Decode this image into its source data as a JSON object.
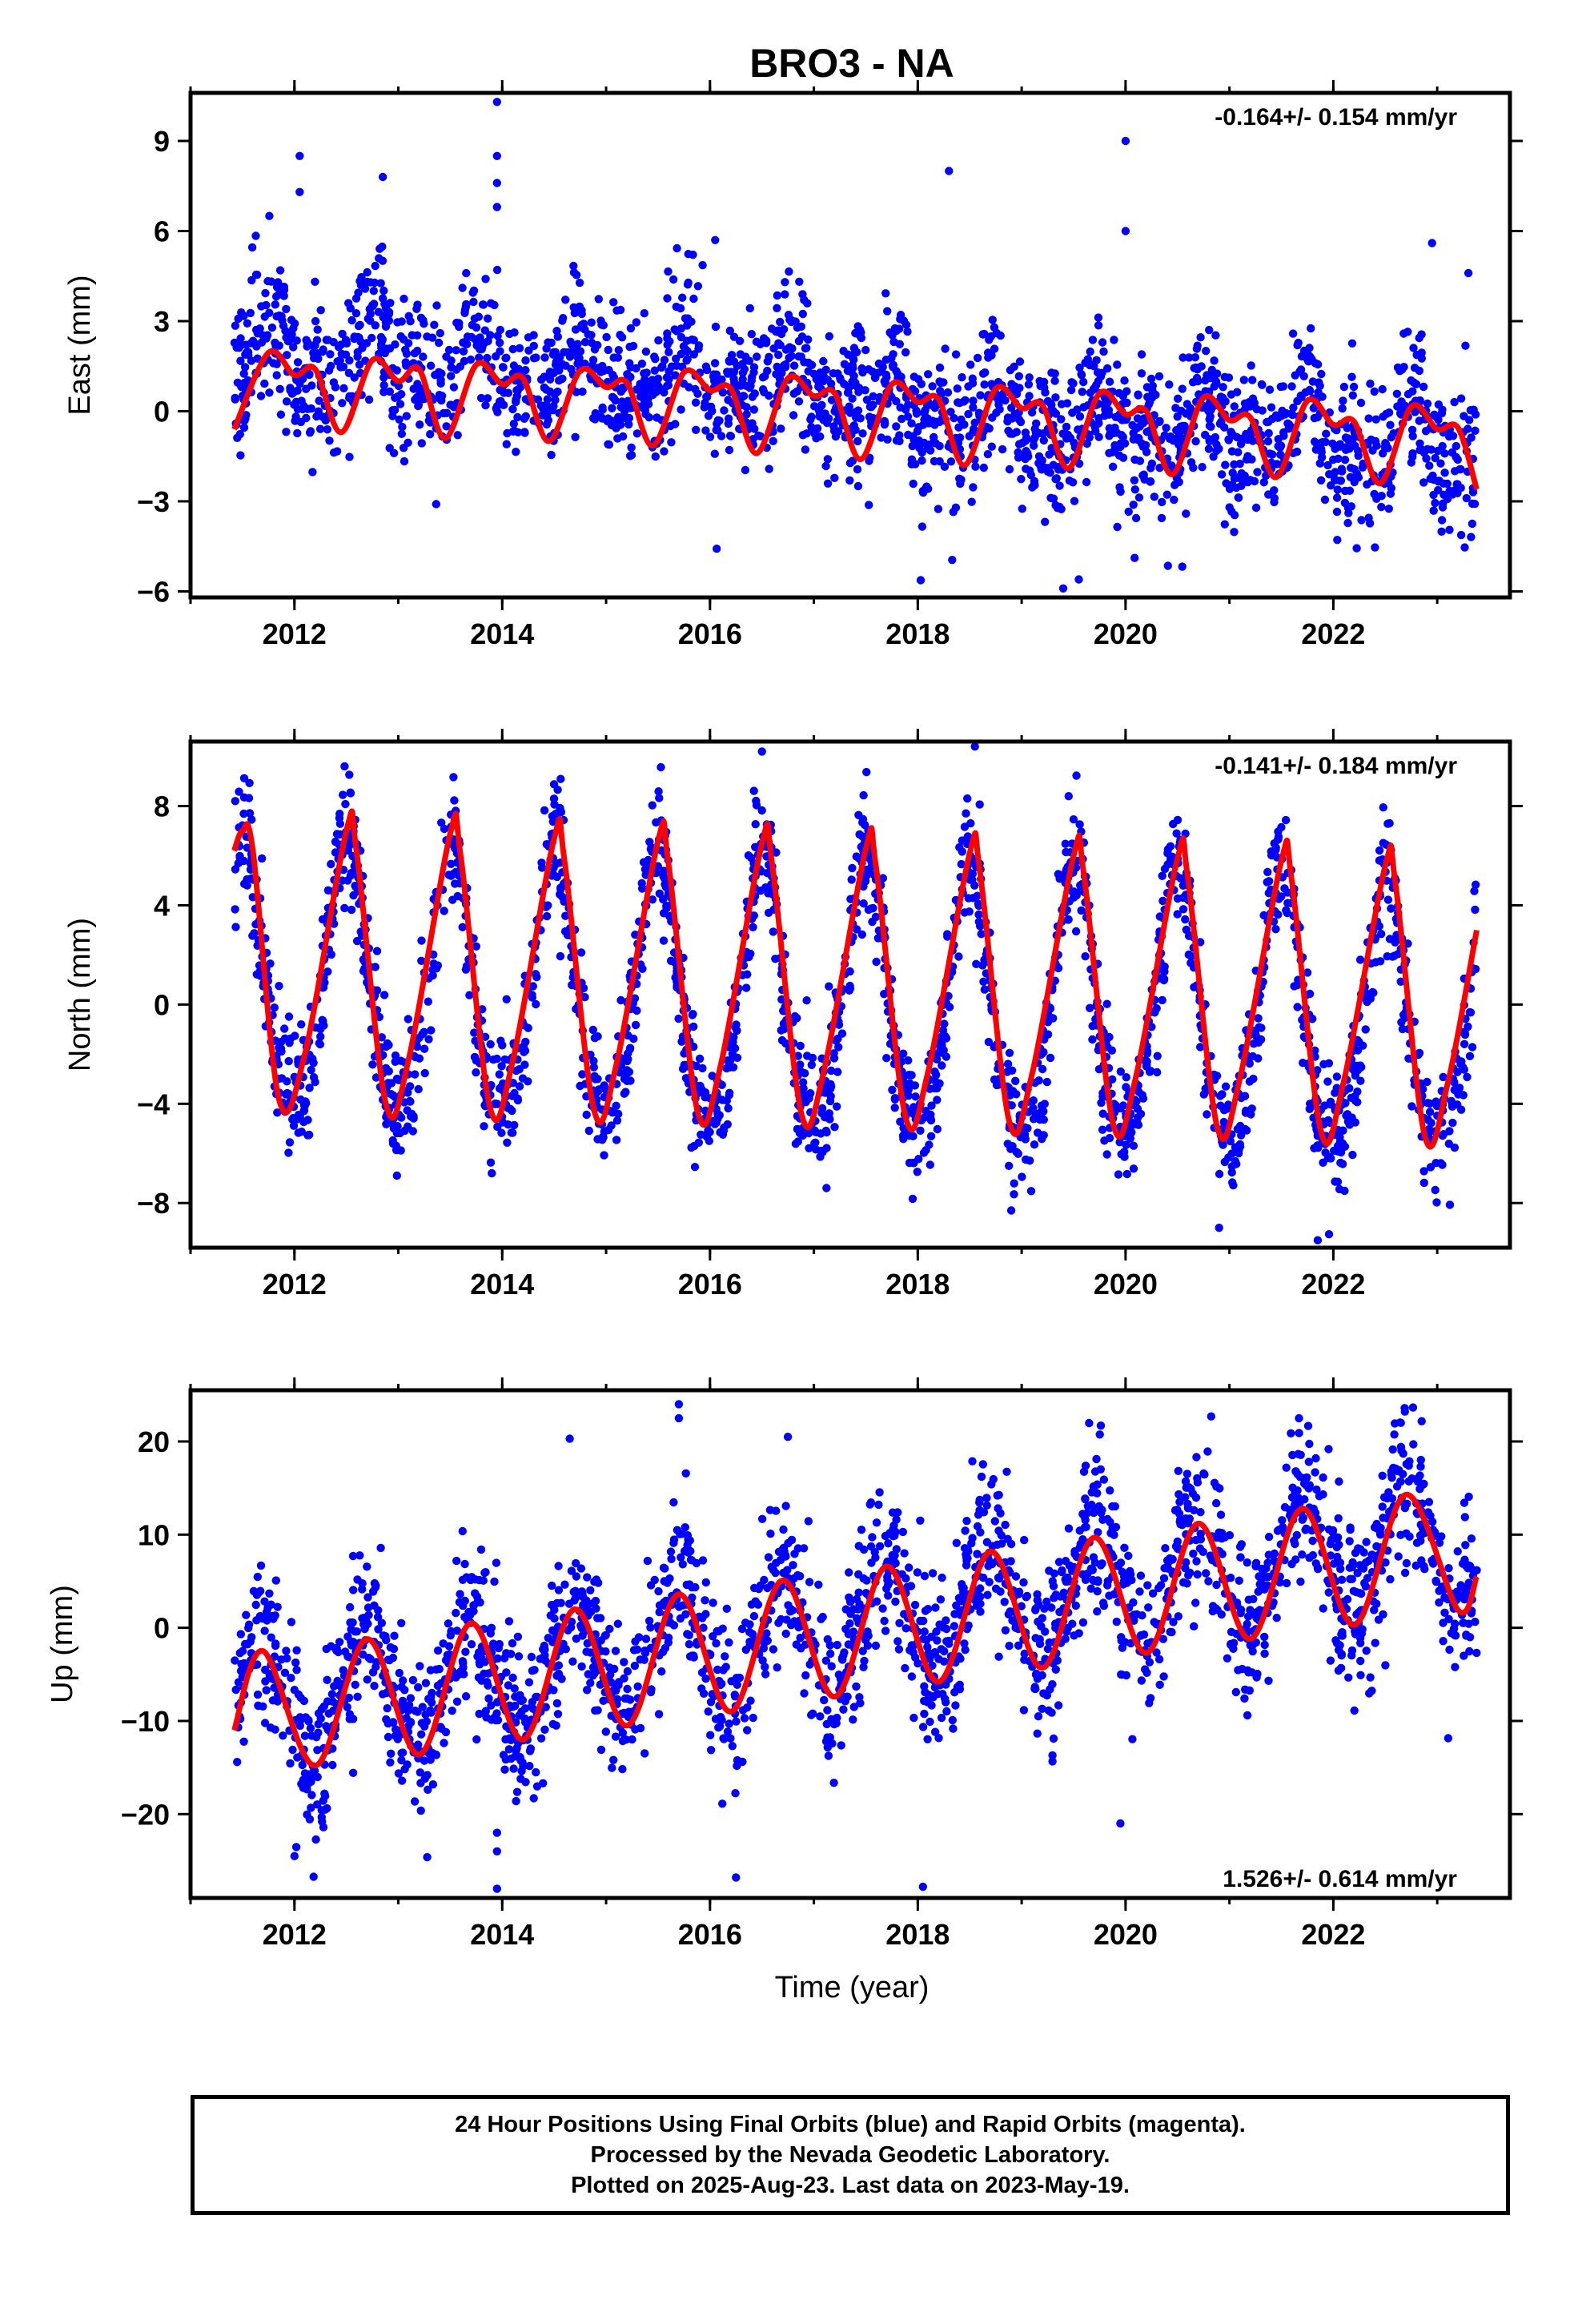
{
  "page": {
    "title": "BRO3 - NA",
    "x_axis_label": "Time (year)",
    "footer": [
      "24 Hour Positions Using Final Orbits (blue) and Rapid Orbits (magenta).",
      "Processed by the Nevada Geodetic Laboratory.",
      "Plotted on 2025-Aug-23. Last data on 2023-May-19."
    ]
  },
  "colors": {
    "data_points": "#0000ff",
    "model_fit": "#ff0000",
    "frame": "#000000"
  },
  "chart_data": [
    {
      "type": "scatter",
      "component": "east",
      "ylabel": "East (mm)",
      "rate_label": "-0.164+/- 0.154 mm/yr",
      "rate_position": "top-right",
      "xlim": [
        2011.0,
        2023.7
      ],
      "ylim": [
        -6.2,
        10.6
      ],
      "xticks": [
        2012,
        2014,
        2016,
        2018,
        2020,
        2022
      ],
      "yticks": [
        -6,
        -3,
        0,
        3,
        6,
        9
      ],
      "model": {
        "offset_before_2017_5": 0.9,
        "offset_after_2017_5": 0.0,
        "trend_mm_per_yr": -0.164,
        "annual_amplitude": 0.85,
        "annual_phase_peak": 2011.75,
        "semiannual_amplitude": 0.55,
        "scatter_sd": 1.2
      },
      "fit_points": [
        [
          2011.42,
          -0.6
        ],
        [
          2011.75,
          1.95
        ],
        [
          2012.0,
          1.2
        ],
        [
          2012.2,
          1.4
        ],
        [
          2012.45,
          -0.7
        ],
        [
          2012.75,
          1.7
        ],
        [
          2013.0,
          1.0
        ],
        [
          2013.2,
          1.4
        ],
        [
          2013.45,
          -0.9
        ],
        [
          2013.75,
          1.55
        ],
        [
          2014.0,
          0.9
        ],
        [
          2014.2,
          1.1
        ],
        [
          2014.45,
          -1.0
        ],
        [
          2014.75,
          1.35
        ],
        [
          2015.0,
          0.8
        ],
        [
          2015.2,
          0.95
        ],
        [
          2015.45,
          -1.15
        ],
        [
          2015.75,
          1.3
        ],
        [
          2016.0,
          0.7
        ],
        [
          2016.2,
          0.75
        ],
        [
          2016.45,
          -1.4
        ],
        [
          2016.75,
          1.1
        ],
        [
          2017.0,
          0.5
        ],
        [
          2017.2,
          0.6
        ],
        [
          2017.45,
          -1.6
        ],
        [
          2017.75,
          0.9
        ],
        [
          2018.0,
          0.3
        ],
        [
          2018.2,
          0.4
        ],
        [
          2018.45,
          -1.8
        ],
        [
          2018.75,
          0.75
        ],
        [
          2019.0,
          0.1
        ],
        [
          2019.2,
          0.2
        ],
        [
          2019.45,
          -1.9
        ],
        [
          2019.75,
          0.6
        ],
        [
          2020.0,
          -0.1
        ],
        [
          2020.2,
          0.0
        ],
        [
          2020.45,
          -2.1
        ],
        [
          2020.75,
          0.45
        ],
        [
          2021.0,
          -0.3
        ],
        [
          2021.2,
          -0.2
        ],
        [
          2021.45,
          -2.2
        ],
        [
          2021.75,
          0.35
        ],
        [
          2022.0,
          -0.45
        ],
        [
          2022.2,
          -0.35
        ],
        [
          2022.45,
          -2.4
        ],
        [
          2022.75,
          0.15
        ],
        [
          2023.0,
          -0.6
        ],
        [
          2023.2,
          -0.55
        ],
        [
          2023.38,
          -2.6
        ]
      ],
      "outliers": [
        [
          2013.95,
          10.3
        ],
        [
          2013.95,
          8.5
        ],
        [
          2013.95,
          7.6
        ],
        [
          2013.95,
          6.8
        ],
        [
          2012.05,
          8.5
        ],
        [
          2012.05,
          7.3
        ],
        [
          2012.85,
          7.8
        ],
        [
          2018.3,
          8.0
        ],
        [
          2020.0,
          9.0
        ],
        [
          2020.0,
          6.0
        ],
        [
          2022.95,
          5.6
        ],
        [
          2023.3,
          4.6
        ],
        [
          2016.05,
          5.7
        ],
        [
          2019.4,
          -5.9
        ],
        [
          2019.55,
          -5.6
        ]
      ]
    },
    {
      "type": "scatter",
      "component": "north",
      "ylabel": "North (mm)",
      "rate_label": "-0.141+/- 0.184 mm/yr",
      "rate_position": "top-right",
      "xlim": [
        2011.0,
        2023.7
      ],
      "ylim": [
        -9.8,
        10.6
      ],
      "xticks": [
        2012,
        2014,
        2016,
        2018,
        2020,
        2022
      ],
      "yticks": [
        -8,
        -4,
        0,
        4,
        8
      ],
      "model": {
        "offset_before_2017_5": 0.0,
        "offset_after_2017_5": 0.0,
        "trend_mm_per_yr": -0.141,
        "annual_amplitude": 5.3,
        "annual_phase_peak": 2011.5,
        "semiannual_amplitude": 0.9,
        "scatter_sd": 1.3
      },
      "fit_points": [
        [
          2011.42,
          6.2
        ],
        [
          2011.5,
          7.0
        ],
        [
          2011.6,
          6.2
        ],
        [
          2011.85,
          -3.8
        ],
        [
          2012.1,
          -2.0
        ],
        [
          2012.5,
          7.0
        ],
        [
          2012.6,
          6.1
        ],
        [
          2012.88,
          -4.0
        ],
        [
          2013.1,
          -2.2
        ],
        [
          2013.5,
          6.9
        ],
        [
          2013.6,
          6.0
        ],
        [
          2013.88,
          -4.1
        ],
        [
          2014.1,
          -2.3
        ],
        [
          2014.5,
          6.7
        ],
        [
          2014.6,
          5.8
        ],
        [
          2014.88,
          -4.2
        ],
        [
          2015.1,
          -2.4
        ],
        [
          2015.5,
          6.6
        ],
        [
          2015.6,
          5.7
        ],
        [
          2015.88,
          -4.3
        ],
        [
          2016.1,
          -2.5
        ],
        [
          2016.5,
          6.5
        ],
        [
          2016.6,
          5.6
        ],
        [
          2016.88,
          -4.4
        ],
        [
          2017.1,
          -2.6
        ],
        [
          2017.5,
          6.3
        ],
        [
          2017.6,
          5.5
        ],
        [
          2017.88,
          -4.5
        ],
        [
          2018.1,
          -2.7
        ],
        [
          2018.5,
          6.1
        ],
        [
          2018.6,
          5.3
        ],
        [
          2018.88,
          -4.7
        ],
        [
          2019.1,
          -2.8
        ],
        [
          2019.5,
          6.0
        ],
        [
          2019.6,
          5.2
        ],
        [
          2019.88,
          -4.8
        ],
        [
          2020.1,
          -2.9
        ],
        [
          2020.5,
          5.9
        ],
        [
          2020.6,
          5.1
        ],
        [
          2020.88,
          -4.9
        ],
        [
          2021.1,
          -3.0
        ],
        [
          2021.5,
          5.8
        ],
        [
          2021.6,
          5.0
        ],
        [
          2021.88,
          -5.1
        ],
        [
          2022.1,
          -3.1
        ],
        [
          2022.5,
          5.6
        ],
        [
          2022.6,
          4.8
        ],
        [
          2022.88,
          -5.3
        ],
        [
          2023.1,
          -3.2
        ],
        [
          2023.38,
          3.0
        ]
      ],
      "outliers": [
        [
          2016.5,
          10.2
        ],
        [
          2018.55,
          10.4
        ],
        [
          2021.85,
          -9.5
        ],
        [
          2020.9,
          -9.0
        ],
        [
          2018.9,
          -8.3
        ],
        [
          2013.9,
          -6.8
        ],
        [
          2012.95,
          -5.6
        ]
      ]
    },
    {
      "type": "scatter",
      "component": "up",
      "ylabel": "Up (mm)",
      "rate_label": "1.526+/- 0.614 mm/yr",
      "rate_position": "bottom-right",
      "xlim": [
        2011.0,
        2023.7
      ],
      "ylim": [
        -29,
        25.5
      ],
      "xticks": [
        2012,
        2014,
        2016,
        2018,
        2020,
        2022
      ],
      "yticks": [
        -20,
        -10,
        0,
        10,
        20
      ],
      "model": {
        "offset_before_2017_5": 0.0,
        "offset_after_2017_5": 0.0,
        "trend_mm_per_yr": 1.526,
        "annual_amplitude": 6.8,
        "annual_phase_peak": 2011.7,
        "semiannual_amplitude": 0.0,
        "scatter_sd": 4.2
      },
      "fit_points": [
        [
          2011.42,
          -11.0
        ],
        [
          2011.7,
          -2.5
        ],
        [
          2012.2,
          -14.8
        ],
        [
          2012.7,
          -1.2
        ],
        [
          2013.2,
          -13.6
        ],
        [
          2013.7,
          0.5
        ],
        [
          2014.2,
          -12.0
        ],
        [
          2014.7,
          2.0
        ],
        [
          2015.2,
          -10.5
        ],
        [
          2015.7,
          3.6
        ],
        [
          2016.2,
          -9.0
        ],
        [
          2016.7,
          5.1
        ],
        [
          2017.2,
          -7.4
        ],
        [
          2017.7,
          6.6
        ],
        [
          2018.2,
          -5.8
        ],
        [
          2018.7,
          8.2
        ],
        [
          2019.2,
          -4.3
        ],
        [
          2019.7,
          9.7
        ],
        [
          2020.2,
          -2.7
        ],
        [
          2020.7,
          11.2
        ],
        [
          2021.2,
          -1.2
        ],
        [
          2021.7,
          12.8
        ],
        [
          2022.2,
          0.3
        ],
        [
          2022.7,
          14.3
        ],
        [
          2023.2,
          1.9
        ],
        [
          2023.38,
          5.5
        ]
      ],
      "outliers": [
        [
          2013.95,
          -28.0
        ],
        [
          2013.95,
          -24.0
        ],
        [
          2013.95,
          -22.0
        ],
        [
          2015.7,
          24.0
        ],
        [
          2015.7,
          22.5
        ],
        [
          2018.05,
          -27.8
        ],
        [
          2016.25,
          -26.8
        ],
        [
          2012.0,
          -24.5
        ],
        [
          2016.75,
          20.5
        ],
        [
          2014.65,
          20.3
        ],
        [
          2019.95,
          -21.0
        ],
        [
          2022.65,
          22.0
        ]
      ]
    }
  ]
}
